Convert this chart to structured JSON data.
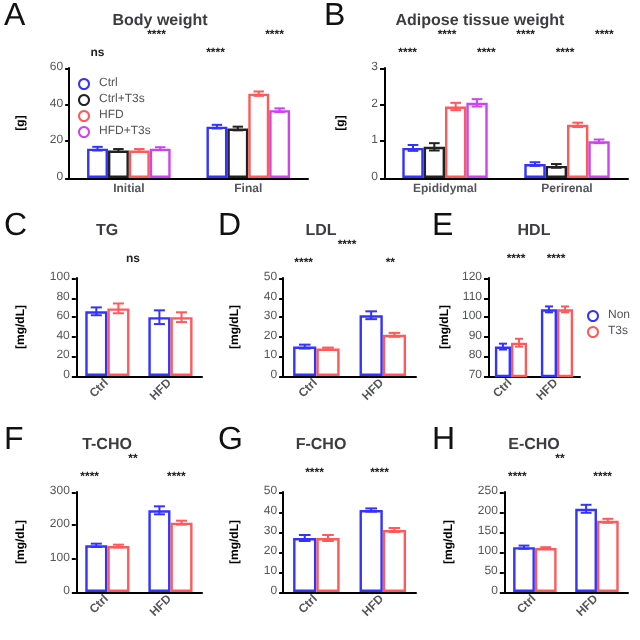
{
  "chart_data": [
    {
      "type": "bar",
      "title": "Body weight",
      "ylabel": "[g]",
      "categories": [
        "Initial",
        "Final"
      ],
      "ylim": [
        0,
        60
      ],
      "yticks": [
        0,
        20,
        40,
        60
      ],
      "grid": false,
      "legend": "top left",
      "annotations": [
        "A",
        "ns",
        "****",
        "****",
        "****"
      ],
      "series": [
        {
          "name": "Ctrl",
          "color": "#3333ff",
          "values": [
            16,
            28
          ],
          "errors": [
            1,
            1
          ]
        },
        {
          "name": "Ctrl+T3s",
          "color": "#222222",
          "values": [
            15,
            27
          ],
          "errors": [
            0.8,
            1
          ]
        },
        {
          "name": "HFD",
          "color": "#ff5a5a",
          "values": [
            15,
            46
          ],
          "errors": [
            0.8,
            1.2
          ]
        },
        {
          "name": "HFD+T3s",
          "color": "#cc44ee",
          "values": [
            16,
            37
          ],
          "errors": [
            0.8,
            1
          ]
        }
      ]
    },
    {
      "type": "bar",
      "title": "Adipose tissue weight",
      "ylabel": "[g]",
      "categories": [
        "Epididymal",
        "Perirenal"
      ],
      "ylim": [
        0,
        3
      ],
      "yticks": [
        0,
        1,
        2,
        3
      ],
      "grid": false,
      "annotations": [
        "B",
        "****",
        "****",
        "****",
        "****",
        "****",
        "****"
      ],
      "series": [
        {
          "color": "#3333ff",
          "values": [
            0.82,
            0.38
          ],
          "errors": [
            0.08,
            0.05
          ]
        },
        {
          "color": "#222222",
          "values": [
            0.85,
            0.33
          ],
          "errors": [
            0.1,
            0.05
          ]
        },
        {
          "color": "#ff5a5a",
          "values": [
            1.95,
            1.45
          ],
          "errors": [
            0.1,
            0.06
          ]
        },
        {
          "color": "#cc44ee",
          "values": [
            2.05,
            1.0
          ],
          "errors": [
            0.1,
            0.05
          ]
        }
      ]
    },
    {
      "type": "bar",
      "title": "TG",
      "ylabel": "[mg/dL]",
      "categories": [
        "Ctrl",
        "HFD"
      ],
      "ylim": [
        0,
        100
      ],
      "yticks": [
        0,
        20,
        40,
        60,
        80,
        100
      ],
      "grid": false,
      "annotations": [
        "C",
        "ns"
      ],
      "series": [
        {
          "color": "#3333ff",
          "values": [
            66,
            60
          ],
          "errors": [
            4,
            7
          ]
        },
        {
          "color": "#ff5a5a",
          "values": [
            69,
            60
          ],
          "errors": [
            5,
            5
          ]
        }
      ]
    },
    {
      "type": "bar",
      "title": "LDL",
      "ylabel": "[mg/dL]",
      "categories": [
        "Ctrl",
        "HFD"
      ],
      "ylim": [
        0,
        50
      ],
      "yticks": [
        0,
        10,
        20,
        30,
        40,
        50
      ],
      "grid": false,
      "annotations": [
        "D",
        "****",
        "****",
        "**"
      ],
      "series": [
        {
          "color": "#3333ff",
          "values": [
            15,
            31
          ],
          "errors": [
            1,
            2
          ]
        },
        {
          "color": "#ff5a5a",
          "values": [
            14,
            21
          ],
          "errors": [
            0.5,
            1
          ]
        }
      ]
    },
    {
      "type": "bar",
      "title": "HDL",
      "ylabel": "[mg/dL]",
      "categories": [
        "Ctrl",
        "HFD"
      ],
      "ylim": [
        70,
        120
      ],
      "yticks": [
        70,
        80,
        90,
        100,
        110,
        120
      ],
      "grid": false,
      "legend": "right",
      "annotations": [
        "E",
        "****",
        "****"
      ],
      "series": [
        {
          "name": "Non",
          "color": "#3333ff",
          "values": [
            85,
            104
          ],
          "errors": [
            1.5,
            1.5
          ]
        },
        {
          "name": "T3s",
          "color": "#ff5a5a",
          "values": [
            87,
            104
          ],
          "errors": [
            2,
            1.5
          ]
        }
      ]
    },
    {
      "type": "bar",
      "title": "T-CHO",
      "ylabel": "[mg/dL]",
      "categories": [
        "Ctrl",
        "HFD"
      ],
      "ylim": [
        0,
        300
      ],
      "yticks": [
        0,
        100,
        200,
        300
      ],
      "grid": false,
      "annotations": [
        "F",
        "****",
        "**",
        "****"
      ],
      "series": [
        {
          "color": "#3333ff",
          "values": [
            140,
            245
          ],
          "errors": [
            5,
            12
          ]
        },
        {
          "color": "#ff5a5a",
          "values": [
            138,
            208
          ],
          "errors": [
            4,
            6
          ]
        }
      ]
    },
    {
      "type": "bar",
      "title": "F-CHO",
      "ylabel": "[mg/dL]",
      "categories": [
        "Ctrl",
        "HFD"
      ],
      "ylim": [
        0,
        50
      ],
      "yticks": [
        0,
        10,
        20,
        30,
        40,
        50
      ],
      "grid": false,
      "annotations": [
        "G",
        "****",
        "****"
      ],
      "series": [
        {
          "color": "#3333ff",
          "values": [
            27,
            41
          ],
          "errors": [
            1.5,
            0.8
          ]
        },
        {
          "color": "#ff5a5a",
          "values": [
            27,
            31
          ],
          "errors": [
            1.5,
            1
          ]
        }
      ]
    },
    {
      "type": "bar",
      "title": "E-CHO",
      "ylabel": "[mg/dL]",
      "categories": [
        "Ctrl",
        "HFD"
      ],
      "ylim": [
        0,
        250
      ],
      "yticks": [
        0,
        50,
        100,
        150,
        200,
        250
      ],
      "grid": false,
      "annotations": [
        "H",
        "****",
        "**",
        "****"
      ],
      "series": [
        {
          "color": "#3333ff",
          "values": [
            112,
            208
          ],
          "errors": [
            4,
            10
          ]
        },
        {
          "color": "#ff5a5a",
          "values": [
            110,
            178
          ],
          "errors": [
            2,
            5
          ]
        }
      ]
    }
  ]
}
